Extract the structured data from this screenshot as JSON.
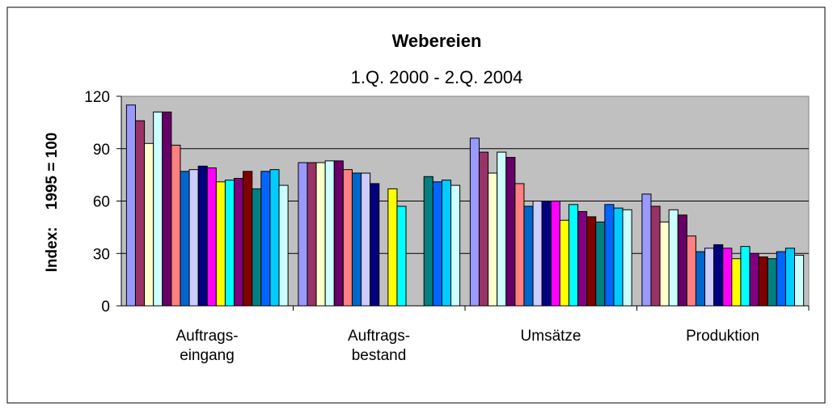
{
  "chart_data": {
    "type": "bar",
    "title": "Webereien",
    "subtitle": "1.Q. 2000 - 2.Q. 2004",
    "y_label": "Index:    1995 = 100",
    "categories": [
      "Auftrags-\neingang",
      "Auftrags-\nbestand",
      "Umsätze",
      "Produktion"
    ],
    "ylim": [
      0,
      120
    ],
    "yticks": [
      0,
      30,
      60,
      90,
      120
    ],
    "grid": true,
    "series": [
      {
        "color": "#9999FF",
        "values": [
          115,
          82,
          96,
          64
        ]
      },
      {
        "color": "#993366",
        "values": [
          106,
          82,
          88,
          57
        ]
      },
      {
        "color": "#FFFFCC",
        "values": [
          93,
          82,
          76,
          48
        ]
      },
      {
        "color": "#CCFFFF",
        "values": [
          111,
          83,
          88,
          55
        ]
      },
      {
        "color": "#660066",
        "values": [
          111,
          83,
          85,
          52
        ]
      },
      {
        "color": "#FF8080",
        "values": [
          92,
          78,
          70,
          40
        ]
      },
      {
        "color": "#0066CC",
        "values": [
          77,
          76,
          57,
          31
        ]
      },
      {
        "color": "#CCCCFF",
        "values": [
          78,
          76,
          60,
          33
        ]
      },
      {
        "color": "#000080",
        "values": [
          80,
          70,
          60,
          35
        ]
      },
      {
        "color": "#FF00FF",
        "values": [
          79,
          null,
          60,
          33
        ]
      },
      {
        "color": "#FFFF00",
        "values": [
          71,
          67,
          49,
          27
        ]
      },
      {
        "color": "#00FFFF",
        "values": [
          72,
          57,
          58,
          34
        ]
      },
      {
        "color": "#800080",
        "values": [
          73,
          null,
          54,
          30
        ]
      },
      {
        "color": "#800000",
        "values": [
          77,
          null,
          51,
          28
        ]
      },
      {
        "color": "#008080",
        "values": [
          67,
          74,
          48,
          27
        ]
      },
      {
        "color": "#0066FF",
        "values": [
          77,
          71,
          58,
          31
        ]
      },
      {
        "color": "#00CCFF",
        "values": [
          78,
          72,
          56,
          33
        ]
      },
      {
        "color": "#CCFFFF",
        "values": [
          69,
          69,
          55,
          29
        ]
      }
    ]
  }
}
